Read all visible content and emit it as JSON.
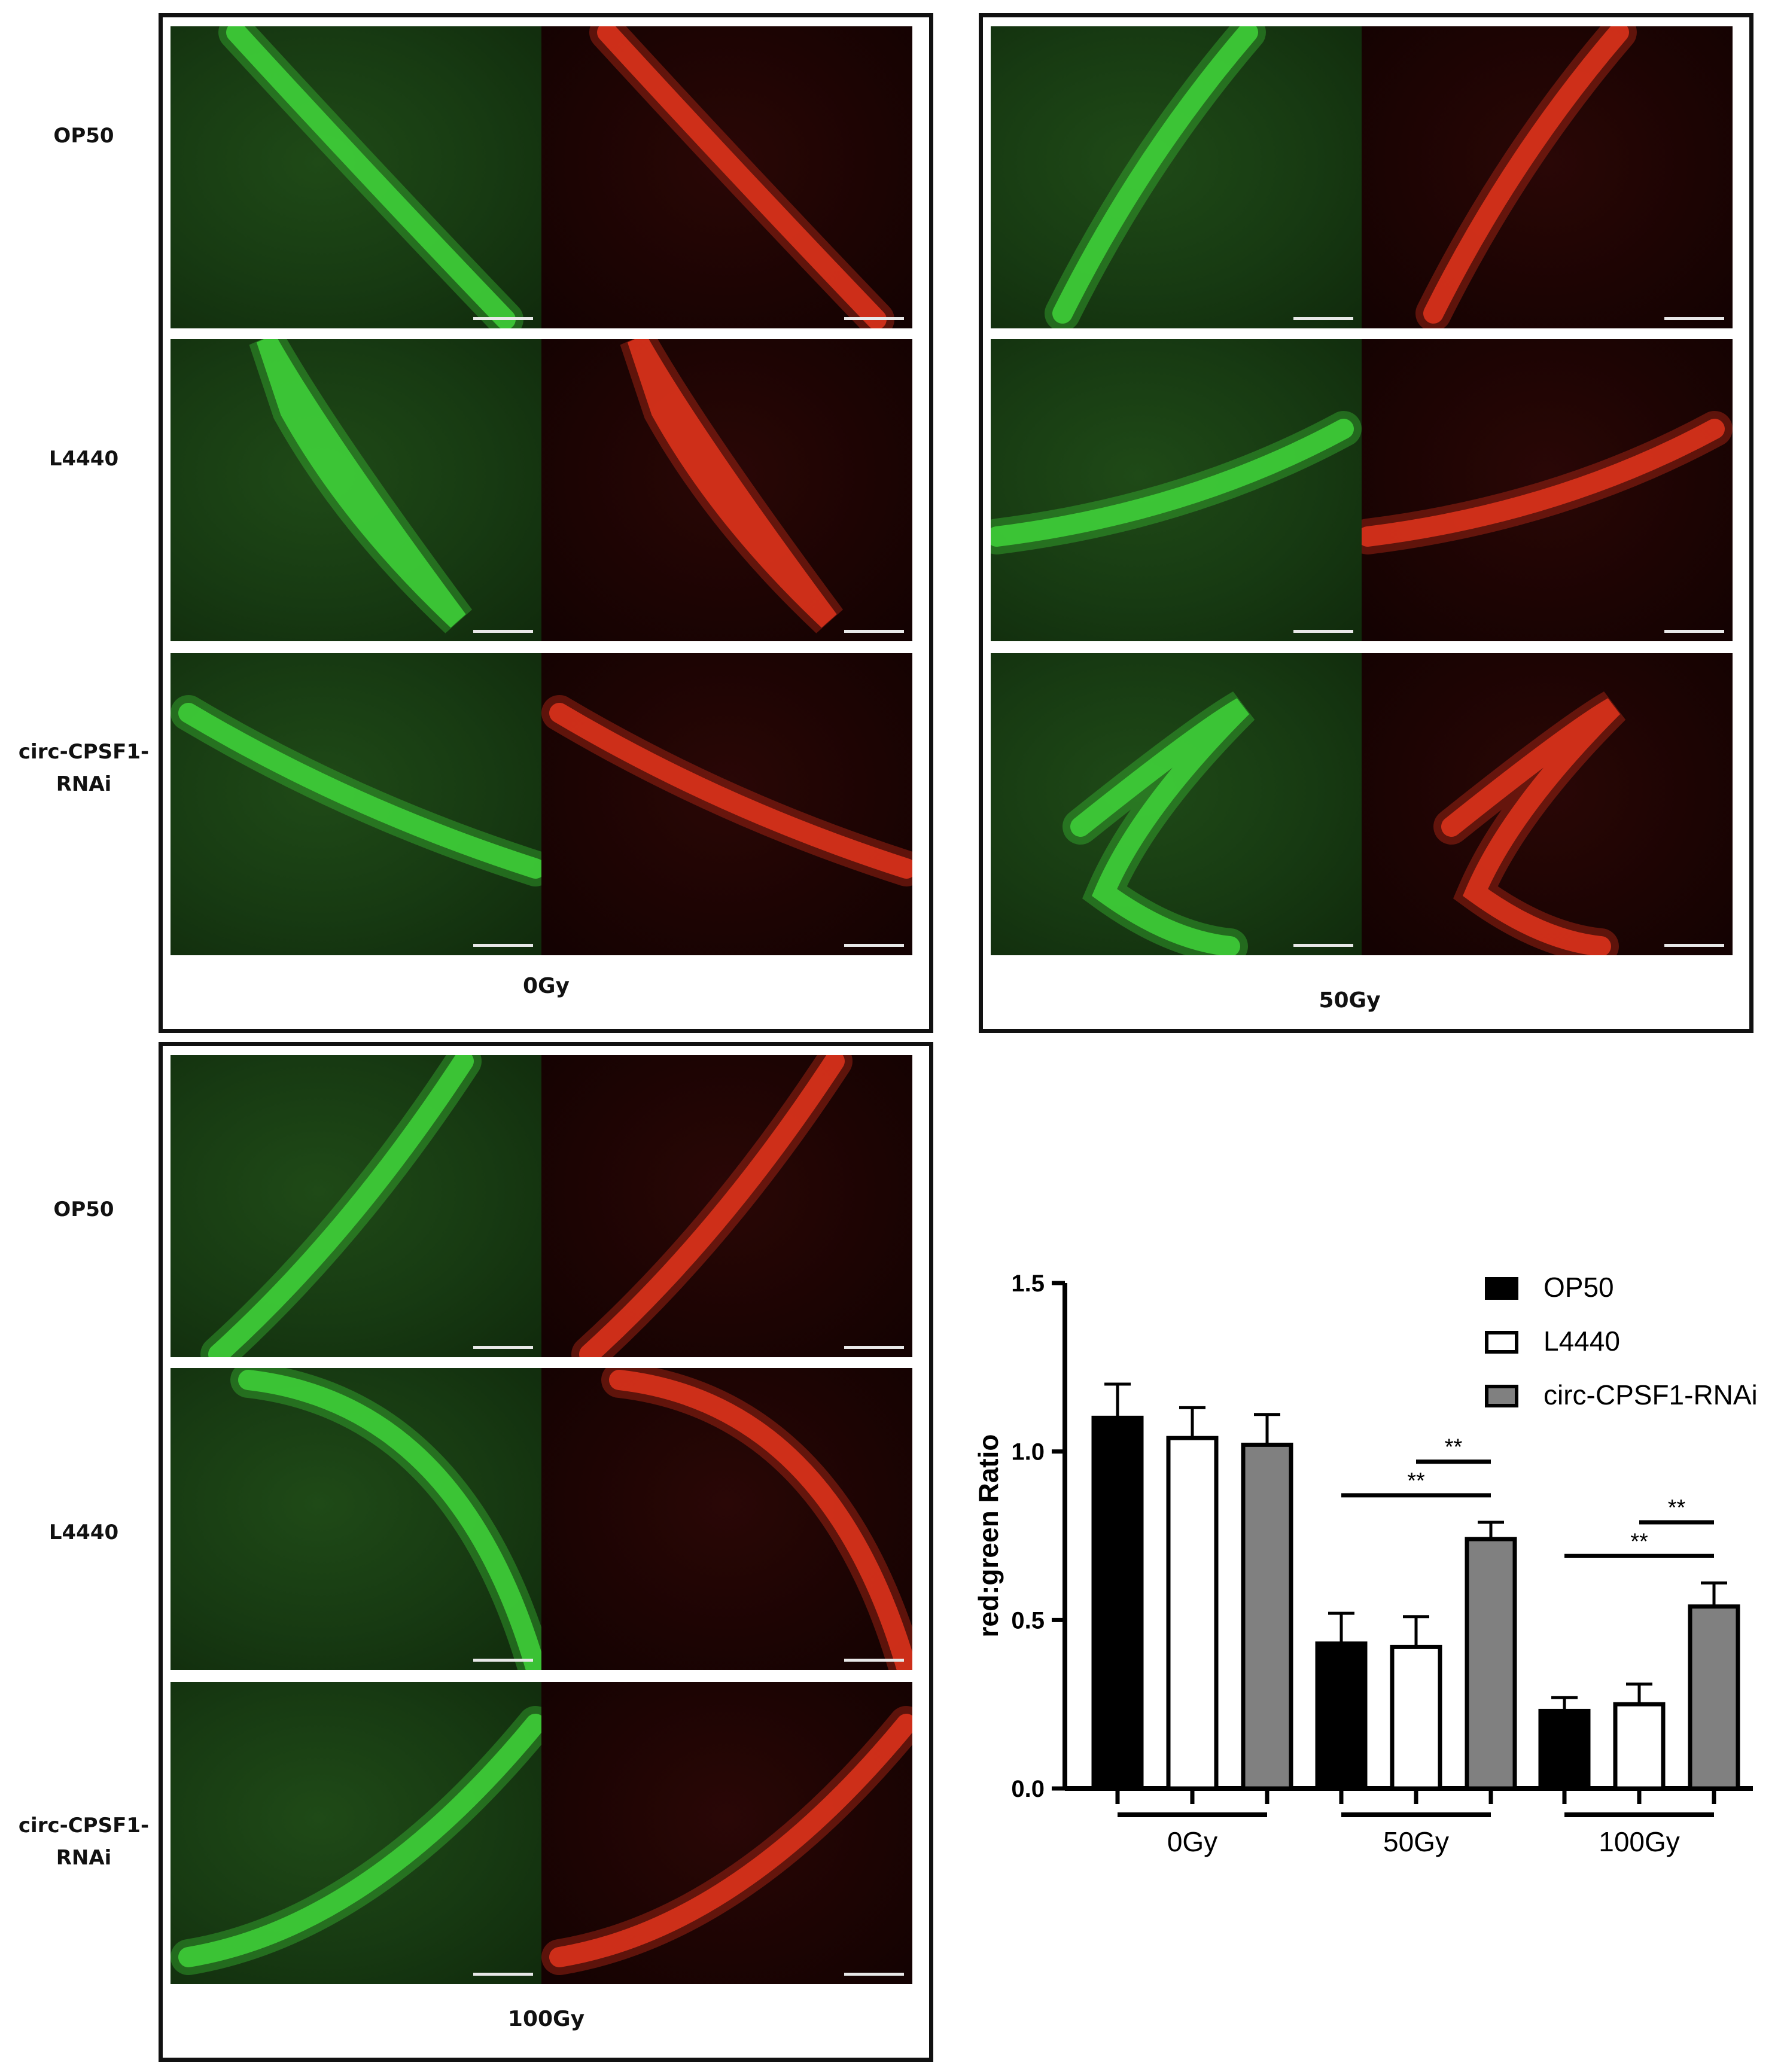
{
  "panels": [
    {
      "dose": "0Gy",
      "rows": [
        {
          "label": "OP50"
        },
        {
          "label": "L4440"
        },
        {
          "label": "circ-CPSF1-\nRNAi"
        }
      ]
    },
    {
      "dose": "50Gy",
      "rows": [
        {
          "label": ""
        },
        {
          "label": ""
        },
        {
          "label": ""
        }
      ]
    },
    {
      "dose": "100Gy",
      "rows": [
        {
          "label": "OP50"
        },
        {
          "label": "L4440"
        },
        {
          "label": "circ-CPSF1-\nRNAi"
        }
      ]
    }
  ],
  "colors": {
    "green_channel": "#3fd23a",
    "red_channel": "#e0341c",
    "op50": "#000000",
    "l4440": "#ffffff",
    "circ": "#808080"
  },
  "chart_data": {
    "type": "bar",
    "title": "",
    "xlabel": "",
    "ylabel": "red:green Ratio",
    "ylim": [
      0,
      1.5
    ],
    "yticks": [
      "0.0",
      "0.5",
      "1.0",
      "1.5"
    ],
    "categories": [
      "0Gy",
      "50Gy",
      "100Gy"
    ],
    "series": [
      {
        "name": "OP50",
        "values": [
          1.1,
          0.43,
          0.23
        ],
        "errors": [
          0.1,
          0.09,
          0.04
        ],
        "color": "#000000"
      },
      {
        "name": "L4440",
        "values": [
          1.04,
          0.42,
          0.25
        ],
        "errors": [
          0.09,
          0.09,
          0.06
        ],
        "color": "#ffffff"
      },
      {
        "name": "circ-CPSF1-RNAi",
        "values": [
          1.02,
          0.74,
          0.54
        ],
        "errors": [
          0.09,
          0.05,
          0.07
        ],
        "color": "#808080"
      }
    ],
    "significance": [
      {
        "group": 1,
        "from_series": 1,
        "to_series": 2,
        "y": 0.97,
        "label": "**"
      },
      {
        "group": 1,
        "from_series": 0,
        "to_series": 2,
        "y": 0.87,
        "label": "**"
      },
      {
        "group": 2,
        "from_series": 1,
        "to_series": 2,
        "y": 0.79,
        "label": "**"
      },
      {
        "group": 2,
        "from_series": 0,
        "to_series": 2,
        "y": 0.69,
        "label": "**"
      }
    ],
    "legend_position": "top-right",
    "grid": false
  }
}
